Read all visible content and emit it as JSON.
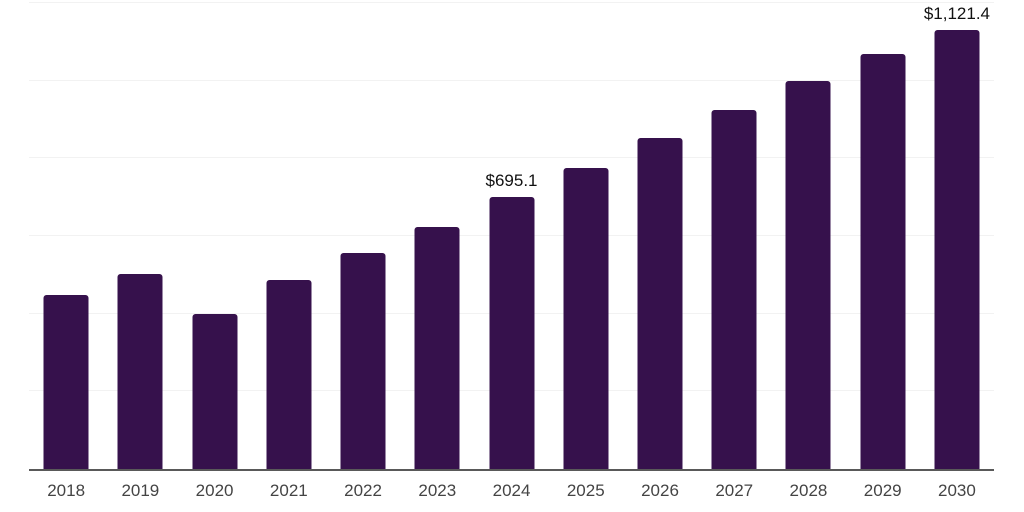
{
  "chart_data": {
    "type": "bar",
    "title": "",
    "xlabel": "",
    "ylabel": "",
    "categories": [
      "2018",
      "2019",
      "2020",
      "2021",
      "2022",
      "2023",
      "2024",
      "2025",
      "2026",
      "2027",
      "2028",
      "2029",
      "2030"
    ],
    "values": [
      445,
      499,
      395,
      484,
      552,
      619,
      695.1,
      769,
      846,
      918,
      990,
      1061,
      1121.4
    ],
    "data_labels": {
      "2024": "$695.1",
      "2030": "$1,121.4"
    },
    "ylim": [
      0,
      1190
    ],
    "y_axis_tick_labels": "none",
    "gridline_count": 6,
    "legend_position": "none",
    "colors": {
      "bar_fill": "#36114c",
      "gridline": "#f2f2f2",
      "axis_line": "#595959",
      "category_label": "#444444",
      "data_label": "#111111",
      "background": "#ffffff"
    }
  }
}
